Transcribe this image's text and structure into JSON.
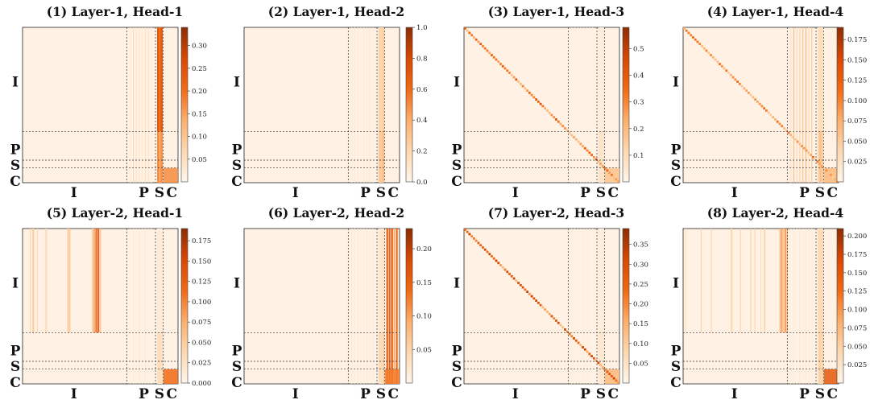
{
  "figure": {
    "section_labels": {
      "image": "I",
      "prompt": "P",
      "state": "S",
      "control": "C"
    },
    "colormap": [
      "#fff5eb",
      "#fdd8b0",
      "#fdae6b",
      "#f16913",
      "#d94801",
      "#8c2d04"
    ]
  },
  "chart_data": [
    {
      "type": "heatmap",
      "title": "(1) Layer-1, Head-1",
      "row_labels": [
        "I",
        "P",
        "S",
        "C"
      ],
      "col_labels": [
        "I",
        "P",
        "S",
        "C"
      ],
      "colorbar_ticks": [
        "0.05",
        "0.10",
        "0.15",
        "0.20",
        "0.25",
        "0.30"
      ],
      "vmin": 0.0,
      "vmax": 0.34,
      "pattern": {
        "s_cols": 1.0,
        "s_cols_in_I": 0.9,
        "c_cols_c_rows": 0.5,
        "diag": 0.0,
        "p_cols_weak": 0.2
      }
    },
    {
      "type": "heatmap",
      "title": "(2) Layer-1, Head-2",
      "row_labels": [
        "I",
        "P",
        "S",
        "C"
      ],
      "col_labels": [
        "I",
        "P",
        "S",
        "C"
      ],
      "colorbar_ticks": [
        "0.0",
        "0.2",
        "0.4",
        "0.6",
        "0.8",
        "1.0"
      ],
      "vmin": 0.0,
      "vmax": 1.0,
      "pattern": {
        "s_cols": 0.55,
        "s_cols_in_I": 0.45,
        "c_cols_c_rows": 0.0,
        "diag": 0.0,
        "p_cols_weak": 0.12
      }
    },
    {
      "type": "heatmap",
      "title": "(3) Layer-1, Head-3",
      "row_labels": [
        "I",
        "P",
        "S",
        "C"
      ],
      "col_labels": [
        "I",
        "P",
        "S",
        "C"
      ],
      "colorbar_ticks": [
        "0.1",
        "0.2",
        "0.3",
        "0.4",
        "0.5"
      ],
      "vmin": 0.0,
      "vmax": 0.58,
      "pattern": {
        "s_cols": 0.15,
        "s_cols_in_I": 0.05,
        "c_cols_c_rows": 0.3,
        "diag": 0.75,
        "p_cols_weak": 0.05
      }
    },
    {
      "type": "heatmap",
      "title": "(4) Layer-1, Head-4",
      "row_labels": [
        "I",
        "P",
        "S",
        "C"
      ],
      "col_labels": [
        "I",
        "P",
        "S",
        "C"
      ],
      "colorbar_ticks": [
        "0.025",
        "0.050",
        "0.075",
        "0.100",
        "0.125",
        "0.150",
        "0.175"
      ],
      "vmin": 0.0,
      "vmax": 0.19,
      "pattern": {
        "s_cols": 0.5,
        "s_cols_in_I": 0.3,
        "c_cols_c_rows": 0.35,
        "diag": 0.6,
        "p_cols_weak": 0.45
      }
    },
    {
      "type": "heatmap",
      "title": "(5) Layer-2, Head-1",
      "row_labels": [
        "I",
        "P",
        "S",
        "C"
      ],
      "col_labels": [
        "I",
        "P",
        "S",
        "C"
      ],
      "colorbar_ticks": [
        "0.000",
        "0.025",
        "0.050",
        "0.075",
        "0.100",
        "0.125",
        "0.150",
        "0.175"
      ],
      "vmin": 0.0,
      "vmax": 0.19,
      "pattern": {
        "s_cols": 0.2,
        "s_cols_in_I": 0.1,
        "c_cols_c_rows": 0.6,
        "diag": 0.0,
        "p_cols_weak": 0.1,
        "i_cols_band": 0.75
      }
    },
    {
      "type": "heatmap",
      "title": "(6) Layer-2, Head-2",
      "row_labels": [
        "I",
        "P",
        "S",
        "C"
      ],
      "col_labels": [
        "I",
        "P",
        "S",
        "C"
      ],
      "colorbar_ticks": [
        "0.05",
        "0.10",
        "0.15",
        "0.20"
      ],
      "vmin": 0.0,
      "vmax": 0.23,
      "pattern": {
        "s_cols": 0.35,
        "s_cols_in_I": 0.25,
        "c_cols_c_rows": 0.55,
        "diag": 0.0,
        "p_cols_weak": 0.1,
        "c_cols_all": 0.8
      }
    },
    {
      "type": "heatmap",
      "title": "(7) Layer-2, Head-3",
      "row_labels": [
        "I",
        "P",
        "S",
        "C"
      ],
      "col_labels": [
        "I",
        "P",
        "S",
        "C"
      ],
      "colorbar_ticks": [
        "0.05",
        "0.10",
        "0.15",
        "0.20",
        "0.25",
        "0.30",
        "0.35"
      ],
      "vmin": 0.0,
      "vmax": 0.39,
      "pattern": {
        "s_cols": 0.1,
        "s_cols_in_I": 0.05,
        "c_cols_c_rows": 0.35,
        "diag": 0.85,
        "p_cols_weak": 0.05
      }
    },
    {
      "type": "heatmap",
      "title": "(8) Layer-2, Head-4",
      "row_labels": [
        "I",
        "P",
        "S",
        "C"
      ],
      "col_labels": [
        "I",
        "P",
        "S",
        "C"
      ],
      "colorbar_ticks": [
        "0.025",
        "0.050",
        "0.075",
        "0.100",
        "0.125",
        "0.150",
        "0.175",
        "0.200"
      ],
      "vmin": 0.0,
      "vmax": 0.21,
      "pattern": {
        "s_cols": 0.4,
        "s_cols_in_I": 0.0,
        "c_cols_c_rows": 0.7,
        "diag": 0.0,
        "p_cols_weak": 0.1,
        "i_cols_band": 0.7
      }
    }
  ]
}
